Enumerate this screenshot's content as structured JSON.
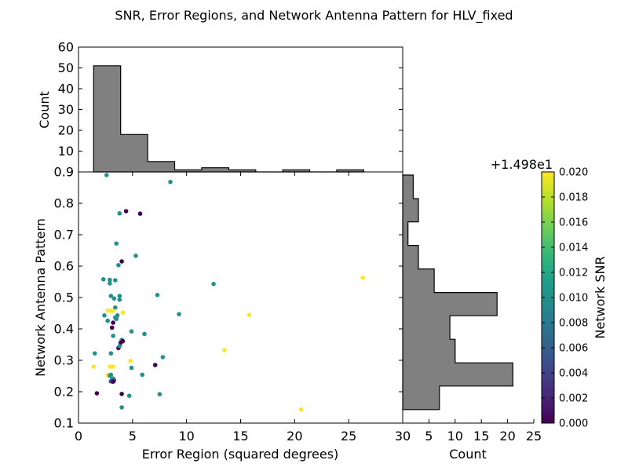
{
  "chart_data": {
    "type": "scatter",
    "title": "SNR, Error Regions, and Network Antenna Pattern for HLV_fixed",
    "xlabel": "Error Region (squared degrees)",
    "ylabel": "Network Antenna Pattern",
    "xlim": [
      0,
      30
    ],
    "ylim": [
      0.1,
      0.9
    ],
    "xticks": [
      "0",
      "5",
      "10",
      "15",
      "20",
      "25",
      "30"
    ],
    "yticks": [
      "0.1",
      "0.2",
      "0.3",
      "0.4",
      "0.5",
      "0.6",
      "0.7",
      "0.8",
      "0.9"
    ],
    "colorbar": {
      "label": "Network SNR",
      "offset_text": "+1.498e1",
      "range": [
        0.0,
        0.02
      ],
      "ticks": [
        "0.000",
        "0.002",
        "0.004",
        "0.006",
        "0.008",
        "0.010",
        "0.012",
        "0.014",
        "0.016",
        "0.018",
        "0.020"
      ],
      "colormap": [
        "#440154",
        "#482878",
        "#3e4989",
        "#31688e",
        "#26828e",
        "#1f9e89",
        "#35b779",
        "#6ece58",
        "#b5de2b",
        "#fde725"
      ]
    },
    "points": [
      [
        2.6,
        0.89,
        0.01
      ],
      [
        8.5,
        0.868,
        0.01
      ],
      [
        4.4,
        0.775,
        0.0
      ],
      [
        3.8,
        0.768,
        0.01
      ],
      [
        5.7,
        0.767,
        0.0
      ],
      [
        3.5,
        0.672,
        0.01
      ],
      [
        5.3,
        0.633,
        0.01
      ],
      [
        4.0,
        0.615,
        0.0
      ],
      [
        3.7,
        0.603,
        0.01
      ],
      [
        2.3,
        0.558,
        0.01
      ],
      [
        2.9,
        0.556,
        0.01
      ],
      [
        3.4,
        0.555,
        0.01
      ],
      [
        2.9,
        0.545,
        0.01
      ],
      [
        12.5,
        0.543,
        0.01
      ],
      [
        26.3,
        0.563,
        0.02
      ],
      [
        7.3,
        0.508,
        0.01
      ],
      [
        3.0,
        0.505,
        0.01
      ],
      [
        3.3,
        0.497,
        0.01
      ],
      [
        3.8,
        0.505,
        0.01
      ],
      [
        3.8,
        0.493,
        0.01
      ],
      [
        3.4,
        0.468,
        0.01
      ],
      [
        2.7,
        0.458,
        0.02
      ],
      [
        3.0,
        0.458,
        0.02
      ],
      [
        3.2,
        0.458,
        0.02
      ],
      [
        2.4,
        0.443,
        0.01
      ],
      [
        4.1,
        0.452,
        0.02
      ],
      [
        3.6,
        0.443,
        0.01
      ],
      [
        3.4,
        0.436,
        0.01
      ],
      [
        3.5,
        0.432,
        0.01
      ],
      [
        2.7,
        0.426,
        0.01
      ],
      [
        9.3,
        0.447,
        0.01
      ],
      [
        15.8,
        0.445,
        0.02
      ],
      [
        3.2,
        0.42,
        0.0
      ],
      [
        3.1,
        0.404,
        0.0
      ],
      [
        4.9,
        0.392,
        0.01
      ],
      [
        6.1,
        0.384,
        0.01
      ],
      [
        3.2,
        0.378,
        0.01
      ],
      [
        4.0,
        0.365,
        0.01
      ],
      [
        3.9,
        0.356,
        0.0
      ],
      [
        4.1,
        0.361,
        0.0
      ],
      [
        3.7,
        0.339,
        0.0
      ],
      [
        3.8,
        0.345,
        0.01
      ],
      [
        13.5,
        0.332,
        0.02
      ],
      [
        1.5,
        0.322,
        0.01
      ],
      [
        3.0,
        0.322,
        0.01
      ],
      [
        7.8,
        0.31,
        0.01
      ],
      [
        4.8,
        0.298,
        0.02
      ],
      [
        7.1,
        0.285,
        0.0
      ],
      [
        4.9,
        0.276,
        0.01
      ],
      [
        1.4,
        0.28,
        0.02
      ],
      [
        2.9,
        0.28,
        0.02
      ],
      [
        3.2,
        0.28,
        0.02
      ],
      [
        2.7,
        0.254,
        0.02
      ],
      [
        2.9,
        0.251,
        0.01
      ],
      [
        3.0,
        0.254,
        0.01
      ],
      [
        5.9,
        0.254,
        0.01
      ],
      [
        3.2,
        0.242,
        0.01
      ],
      [
        3.1,
        0.239,
        0.01
      ],
      [
        3.3,
        0.236,
        0.005
      ],
      [
        3.0,
        0.233,
        0.005
      ],
      [
        3.2,
        0.232,
        0.0
      ],
      [
        1.7,
        0.195,
        0.0
      ],
      [
        4.0,
        0.193,
        0.0
      ],
      [
        4.7,
        0.187,
        0.01
      ],
      [
        7.5,
        0.192,
        0.01
      ],
      [
        4.0,
        0.15,
        0.01
      ],
      [
        20.6,
        0.143,
        0.02
      ]
    ],
    "x_hist": {
      "ylabel": "Count",
      "ylim": [
        0,
        60
      ],
      "yticks": [
        "0",
        "10",
        "20",
        "30",
        "40",
        "50",
        "60"
      ],
      "bins": [
        1.4,
        3.9,
        6.4,
        8.9,
        11.4,
        13.9,
        16.4,
        18.9,
        21.4,
        23.9,
        26.4
      ],
      "counts": [
        51,
        18,
        5,
        1,
        2,
        1,
        0,
        1,
        0,
        1
      ]
    },
    "y_hist": {
      "xlabel": "Count",
      "xlim": [
        0,
        25
      ],
      "xticks": [
        "0",
        "5",
        "10",
        "15",
        "20",
        "25"
      ],
      "bins": [
        0.143,
        0.218,
        0.292,
        0.367,
        0.442,
        0.516,
        0.591,
        0.666,
        0.741,
        0.815,
        0.89
      ],
      "counts": [
        7,
        21,
        10,
        9,
        18,
        6,
        3,
        1,
        3,
        2
      ]
    }
  }
}
